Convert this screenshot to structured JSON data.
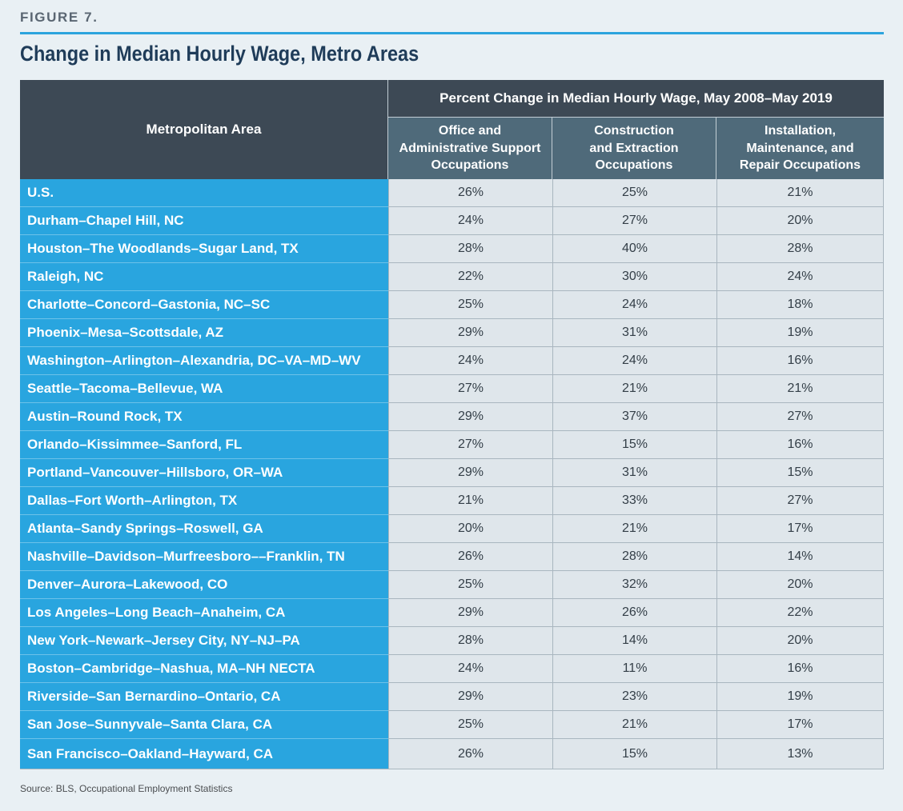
{
  "figure_label": "FIGURE 7.",
  "source": "Source: BLS, Occupational Employment Statistics",
  "colors": {
    "page_bg": "#e9f0f4",
    "accent": "#2ca4dd",
    "title": "#1f3c59",
    "header_dark": "#3d4955",
    "header_sub": "#4f6a7a",
    "row_label_bg": "#29a5df",
    "cell_bg": "#dfe6eb",
    "grid": "#a9b6bf",
    "value_text": "#333e47"
  },
  "chart_data": {
    "type": "table",
    "title": "Change in Median Hourly Wage, Metro Areas",
    "row_header": "Metropolitan Area",
    "column_group": "Percent Change in Median Hourly Wage, May 2008–May 2019",
    "columns": [
      {
        "lines": [
          "Office and",
          "Administrative Support",
          "Occupations"
        ]
      },
      {
        "lines": [
          "Construction",
          "and Extraction",
          "Occupations"
        ]
      },
      {
        "lines": [
          "Installation,",
          "Maintenance, and",
          "Repair Occupations"
        ]
      }
    ],
    "rows": [
      {
        "label": "U.S.",
        "values": [
          "26%",
          "25%",
          "21%"
        ]
      },
      {
        "label": "Durham–Chapel Hill, NC",
        "values": [
          "24%",
          "27%",
          "20%"
        ]
      },
      {
        "label": "Houston–The Woodlands–Sugar Land, TX",
        "values": [
          "28%",
          "40%",
          "28%"
        ]
      },
      {
        "label": "Raleigh, NC",
        "values": [
          "22%",
          "30%",
          "24%"
        ]
      },
      {
        "label": "Charlotte–Concord–Gastonia, NC–SC",
        "values": [
          "25%",
          "24%",
          "18%"
        ]
      },
      {
        "label": "Phoenix–Mesa–Scottsdale, AZ",
        "values": [
          "29%",
          "31%",
          "19%"
        ]
      },
      {
        "label": "Washington–Arlington–Alexandria, DC–VA–MD–WV",
        "values": [
          "24%",
          "24%",
          "16%"
        ]
      },
      {
        "label": "Seattle–Tacoma–Bellevue, WA",
        "values": [
          "27%",
          "21%",
          "21%"
        ]
      },
      {
        "label": "Austin–Round Rock, TX",
        "values": [
          "29%",
          "37%",
          "27%"
        ]
      },
      {
        "label": "Orlando–Kissimmee–Sanford, FL",
        "values": [
          "27%",
          "15%",
          "16%"
        ]
      },
      {
        "label": "Portland–Vancouver–Hillsboro, OR–WA",
        "values": [
          "29%",
          "31%",
          "15%"
        ]
      },
      {
        "label": "Dallas–Fort Worth–Arlington, TX",
        "values": [
          "21%",
          "33%",
          "27%"
        ]
      },
      {
        "label": "Atlanta–Sandy Springs–Roswell, GA",
        "values": [
          "20%",
          "21%",
          "17%"
        ]
      },
      {
        "label": "Nashville–Davidson–Murfreesboro––Franklin, TN",
        "values": [
          "26%",
          "28%",
          "14%"
        ]
      },
      {
        "label": "Denver–Aurora–Lakewood, CO",
        "values": [
          "25%",
          "32%",
          "20%"
        ]
      },
      {
        "label": "Los Angeles–Long Beach–Anaheim, CA",
        "values": [
          "29%",
          "26%",
          "22%"
        ]
      },
      {
        "label": "New York–Newark–Jersey City, NY–NJ–PA",
        "values": [
          "28%",
          "14%",
          "20%"
        ]
      },
      {
        "label": "Boston–Cambridge–Nashua, MA–NH NECTA",
        "values": [
          "24%",
          "11%",
          "16%"
        ]
      },
      {
        "label": "Riverside–San Bernardino–Ontario, CA",
        "values": [
          "29%",
          "23%",
          "19%"
        ]
      },
      {
        "label": "San Jose–Sunnyvale–Santa Clara, CA",
        "values": [
          "25%",
          "21%",
          "17%"
        ]
      },
      {
        "label": "San Francisco–Oakland–Hayward, CA",
        "values": [
          "26%",
          "15%",
          "13%"
        ]
      }
    ]
  }
}
